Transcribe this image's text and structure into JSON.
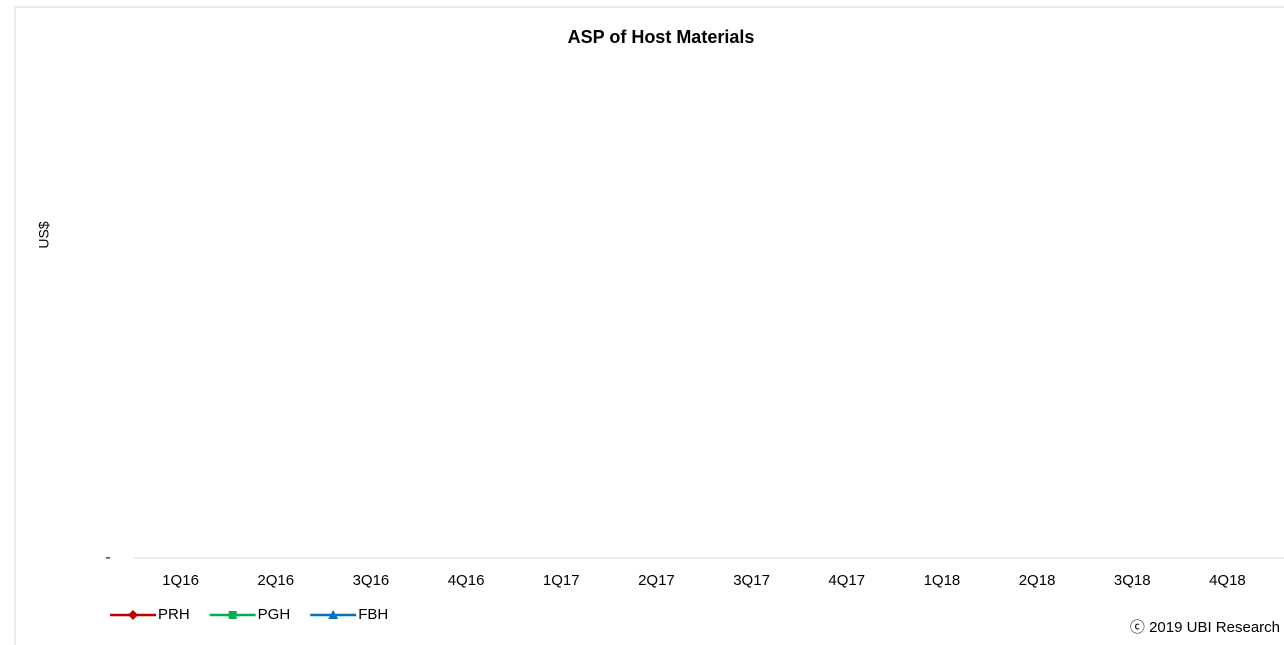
{
  "chart_data": {
    "type": "line",
    "title": "ASP of Host Materials",
    "ylabel": "US$",
    "categories": [
      "1Q16",
      "2Q16",
      "3Q16",
      "4Q16",
      "1Q17",
      "2Q17",
      "3Q17",
      "4Q17",
      "1Q18",
      "2Q18",
      "3Q18",
      "4Q18"
    ],
    "series": [
      {
        "name": "PRH",
        "color": "#c00000",
        "marker": "diamond",
        "values": [
          null,
          null,
          null,
          null,
          null,
          null,
          null,
          null,
          null,
          null,
          null,
          null
        ]
      },
      {
        "name": "PGH",
        "color": "#00b050",
        "marker": "square",
        "values": [
          null,
          null,
          null,
          null,
          null,
          null,
          null,
          null,
          null,
          null,
          null,
          null
        ]
      },
      {
        "name": "FBH",
        "color": "#0070c0",
        "marker": "triangle",
        "values": [
          null,
          null,
          null,
          null,
          null,
          null,
          null,
          null,
          null,
          null,
          null,
          null
        ]
      }
    ],
    "yticks": [
      {
        "value": 0,
        "label": "-"
      }
    ],
    "legend": "bottom-left",
    "source": "ⓒ 2019 UBI Research"
  }
}
